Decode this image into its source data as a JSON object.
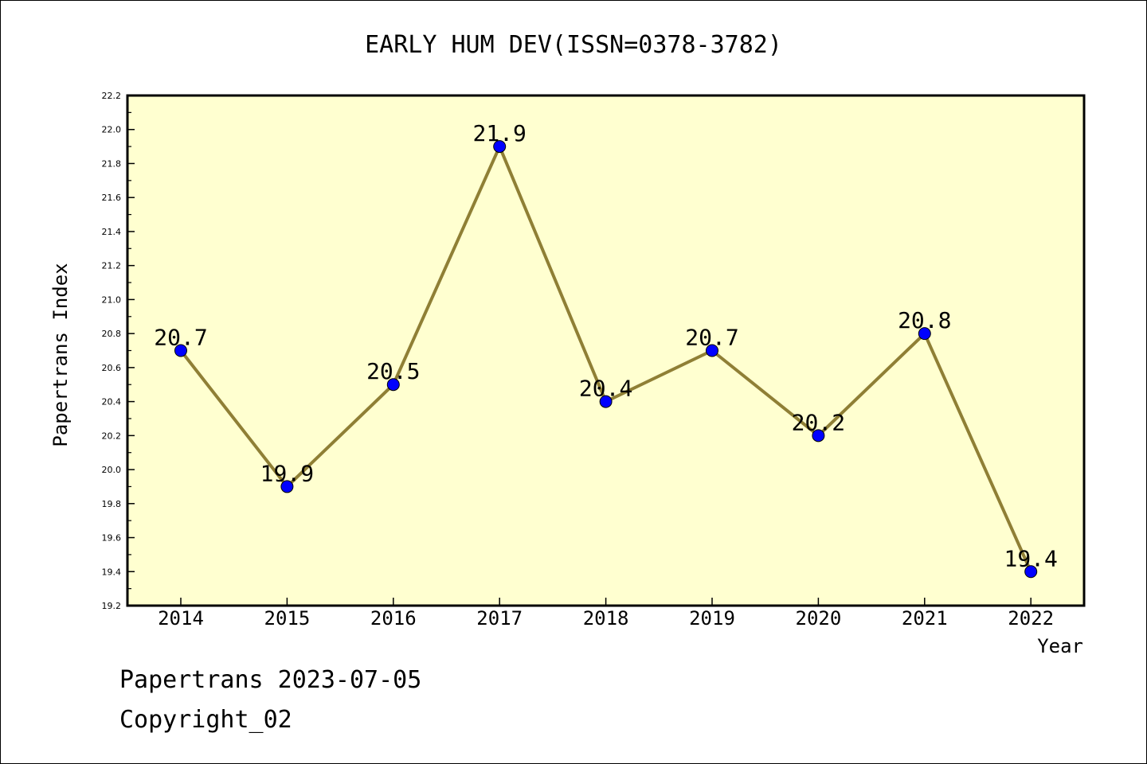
{
  "chart_data": {
    "type": "line",
    "title": "EARLY HUM DEV(ISSN=0378-3782)",
    "xlabel": "Year",
    "ylabel": "Papertrans Index",
    "x": [
      "2014",
      "2015",
      "2016",
      "2017",
      "2018",
      "2019",
      "2020",
      "2021",
      "2022"
    ],
    "series": [
      {
        "values": [
          20.7,
          19.9,
          20.5,
          21.9,
          20.4,
          20.7,
          20.2,
          20.8,
          19.4
        ]
      }
    ],
    "data_labels": [
      "20.7",
      "19.9",
      "20.5",
      "21.9",
      "20.4",
      "20.7",
      "20.2",
      "20.8",
      "19.4"
    ],
    "ylim": [
      19.2,
      22.2
    ],
    "yticks": [
      "19.2",
      "19.4",
      "19.6",
      "19.8",
      "20.0",
      "20.2",
      "20.4",
      "20.6",
      "20.8",
      "21.0",
      "21.2",
      "21.4",
      "21.6",
      "21.8",
      "22.0",
      "22.2"
    ],
    "grid": false,
    "line_color": "#8f7f35",
    "marker_color": "#0000ff",
    "plot_background": "#ffffd0"
  },
  "footer": {
    "line1": "Papertrans 2023-07-05",
    "line2": "Copyright_02"
  }
}
